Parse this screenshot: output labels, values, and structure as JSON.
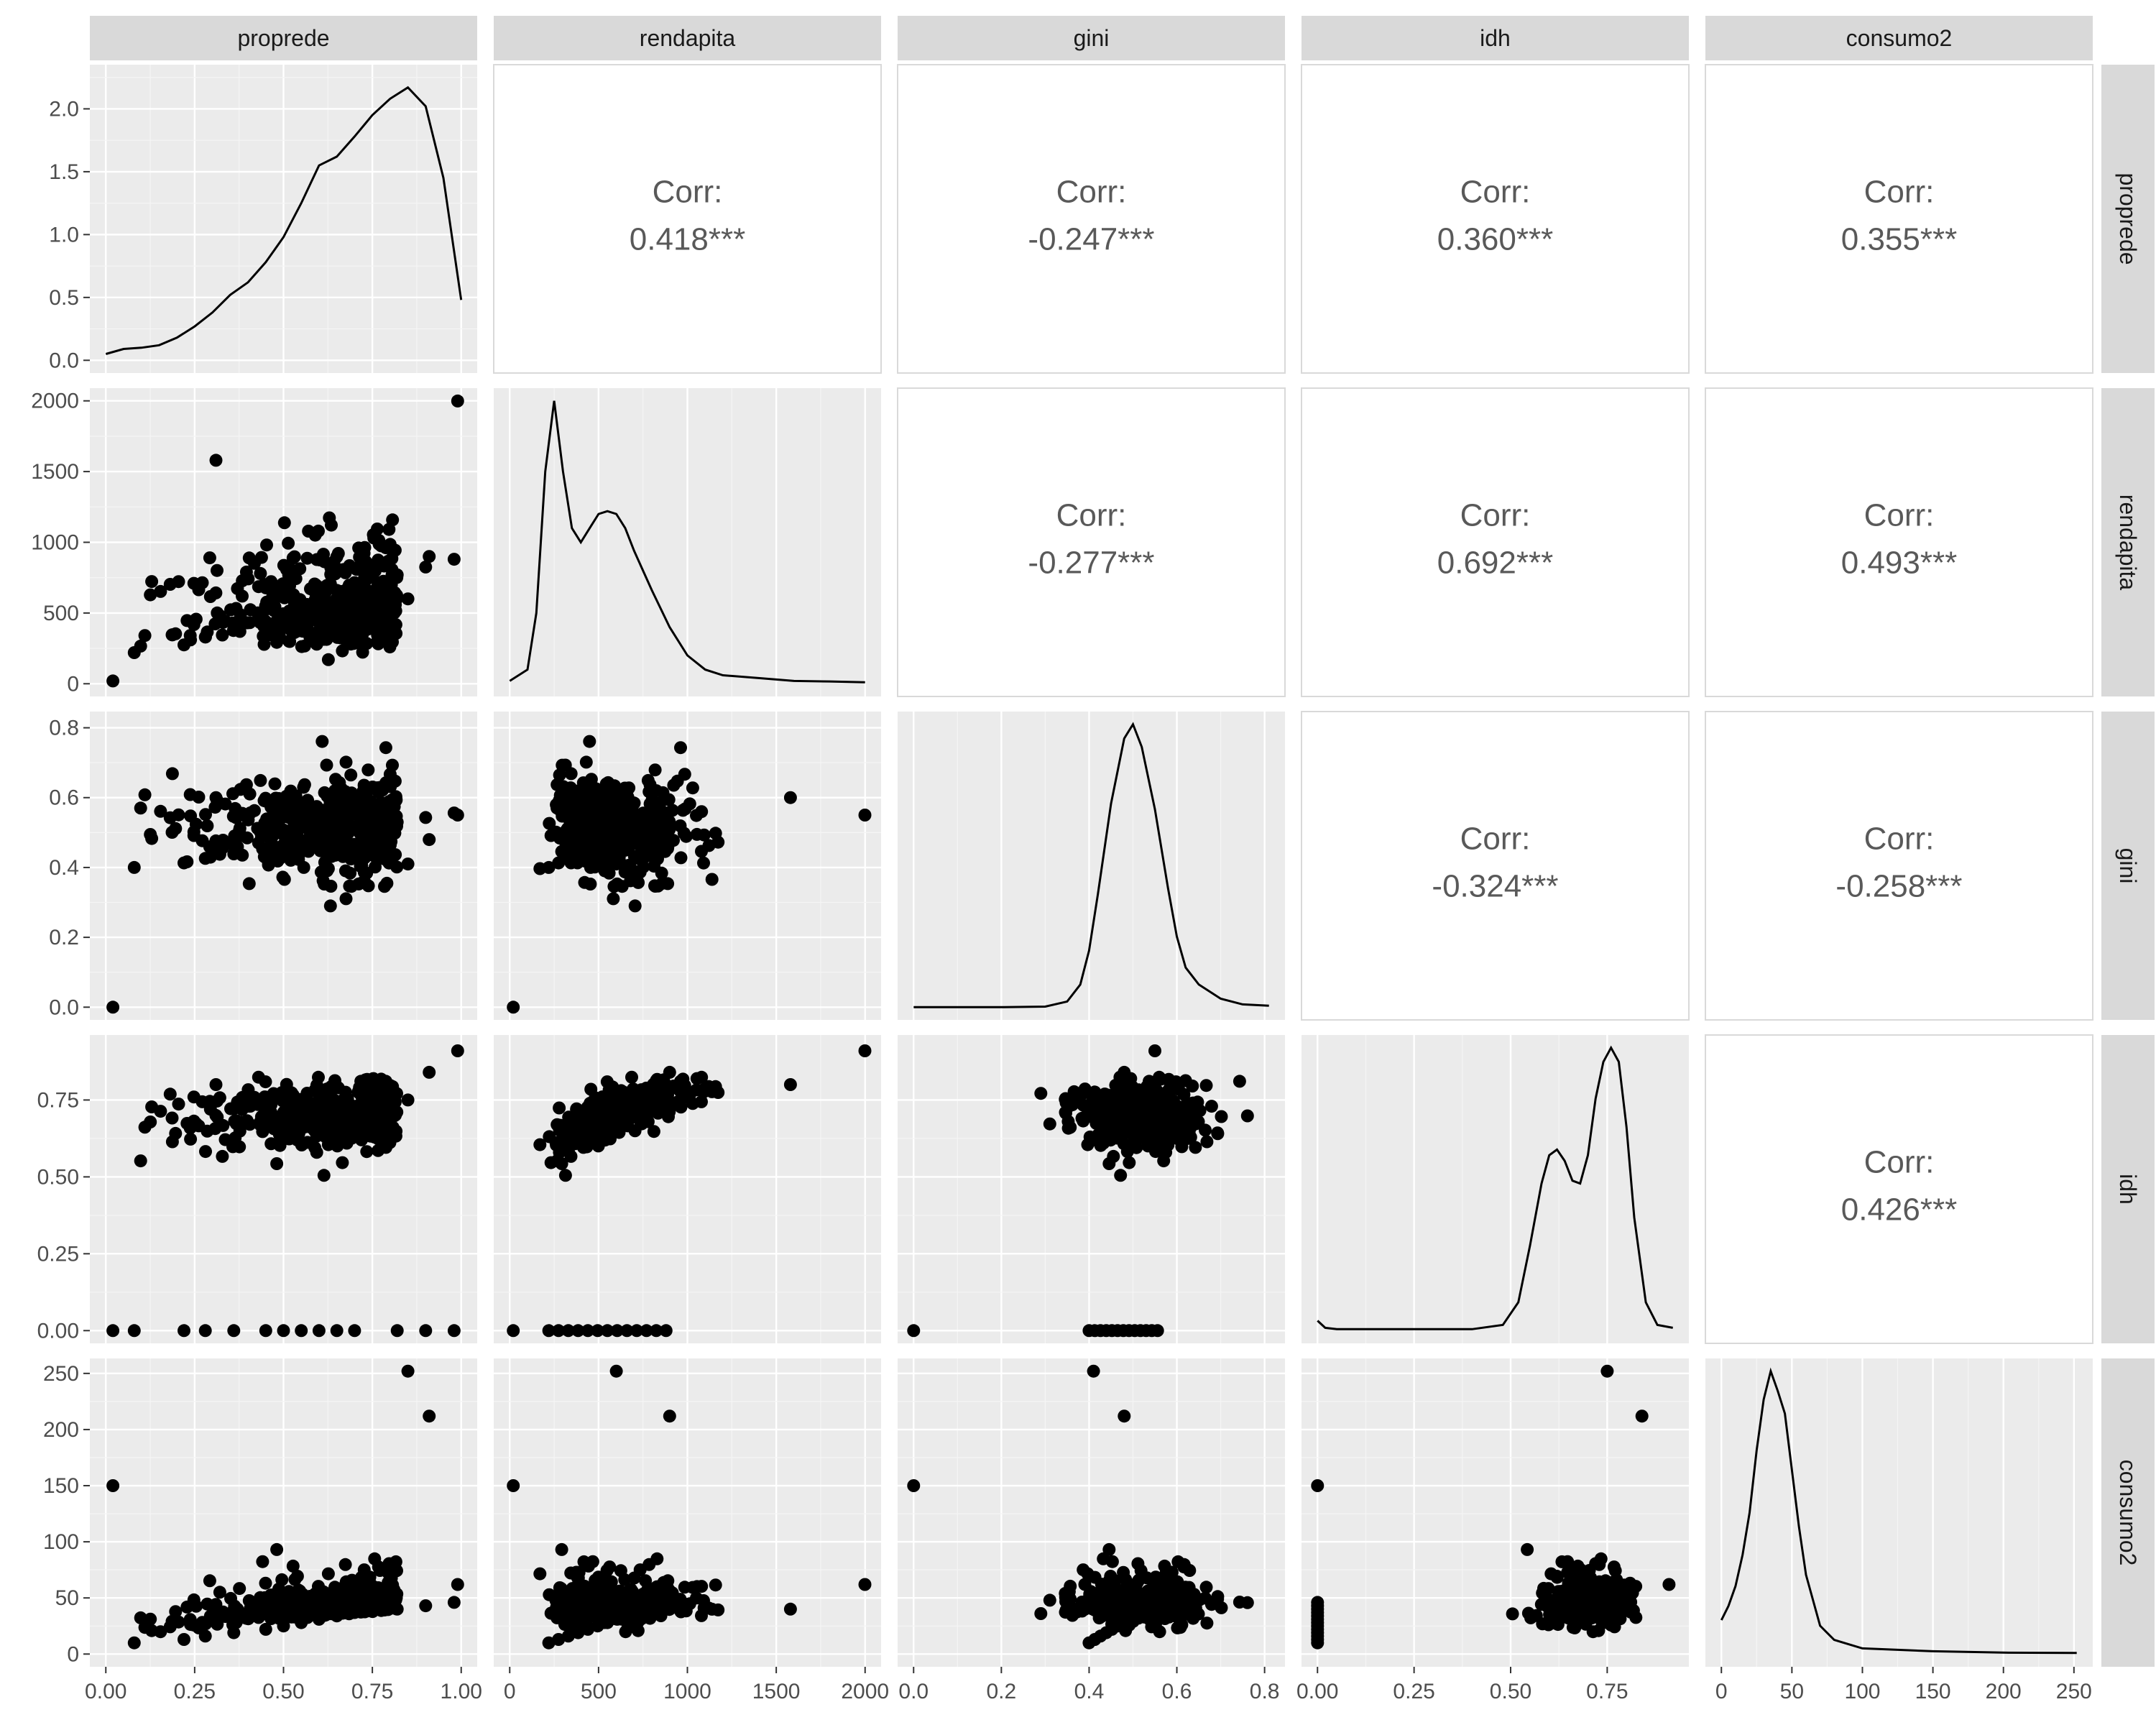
{
  "chart_data": {
    "type": "scatter-matrix",
    "variables": [
      "proprede",
      "rendapita",
      "gini",
      "idh",
      "consumo2"
    ],
    "corr_label": "Corr:",
    "correlations": [
      {
        "row": "proprede",
        "col": "rendapita",
        "value": "0.418***"
      },
      {
        "row": "proprede",
        "col": "gini",
        "value": "-0.247***"
      },
      {
        "row": "proprede",
        "col": "idh",
        "value": "0.360***"
      },
      {
        "row": "proprede",
        "col": "consumo2",
        "value": "0.355***"
      },
      {
        "row": "rendapita",
        "col": "gini",
        "value": "-0.277***"
      },
      {
        "row": "rendapita",
        "col": "idh",
        "value": "0.692***"
      },
      {
        "row": "rendapita",
        "col": "consumo2",
        "value": "0.493***"
      },
      {
        "row": "gini",
        "col": "idh",
        "value": "-0.324***"
      },
      {
        "row": "gini",
        "col": "consumo2",
        "value": "-0.258***"
      },
      {
        "row": "idh",
        "col": "consumo2",
        "value": "0.426***"
      }
    ],
    "axes": {
      "proprede": {
        "range": [
          0,
          1
        ],
        "ticks": [
          0,
          0.25,
          0.5,
          0.75,
          1
        ],
        "tick_labels": [
          "0.00",
          "0.25",
          "0.50",
          "0.75",
          "1.00"
        ]
      },
      "rendapita": {
        "range": [
          0,
          2000
        ],
        "ticks": [
          0,
          500,
          1000,
          1500,
          2000
        ],
        "tick_labels": [
          "0",
          "500",
          "1000",
          "1500",
          "2000"
        ]
      },
      "gini": {
        "range": [
          0,
          0.81
        ],
        "ticks": [
          0,
          0.2,
          0.4,
          0.6,
          0.8
        ],
        "tick_labels": [
          "0.0",
          "0.2",
          "0.4",
          "0.6",
          "0.8"
        ]
      },
      "idh": {
        "range": [
          0,
          0.92
        ],
        "ticks": [
          0,
          0.25,
          0.5,
          0.75
        ],
        "tick_labels": [
          "0.00",
          "0.25",
          "0.50",
          "0.75"
        ]
      },
      "consumo2": {
        "range": [
          0,
          252
        ],
        "ticks": [
          0,
          50,
          100,
          150,
          200,
          250
        ],
        "tick_labels": [
          "0",
          "50",
          "100",
          "150",
          "200",
          "250"
        ]
      }
    },
    "density_axis": {
      "variable": "proprede",
      "range": [
        0,
        2.25
      ],
      "ticks": [
        0,
        0.5,
        1,
        1.5,
        2
      ],
      "tick_labels": [
        "0.0",
        "0.5",
        "1.0",
        "1.5",
        "2.0"
      ]
    },
    "densities": {
      "proprede": {
        "x": [
          0,
          0.05,
          0.1,
          0.15,
          0.2,
          0.25,
          0.3,
          0.35,
          0.4,
          0.45,
          0.5,
          0.55,
          0.6,
          0.65,
          0.7,
          0.75,
          0.8,
          0.85,
          0.9,
          0.95,
          1.0
        ],
        "y": [
          0.05,
          0.09,
          0.1,
          0.12,
          0.18,
          0.27,
          0.38,
          0.52,
          0.62,
          0.78,
          0.98,
          1.25,
          1.55,
          1.62,
          1.78,
          1.95,
          2.08,
          2.17,
          2.02,
          1.45,
          0.48
        ]
      },
      "rendapita": {
        "x": [
          0,
          100,
          150,
          200,
          250,
          300,
          350,
          400,
          450,
          500,
          550,
          600,
          650,
          700,
          800,
          900,
          1000,
          1100,
          1200,
          1400,
          1600,
          1800,
          2000
        ],
        "y": [
          0.01,
          0.05,
          0.25,
          0.75,
          1.0,
          0.75,
          0.55,
          0.5,
          0.55,
          0.6,
          0.61,
          0.6,
          0.55,
          0.47,
          0.33,
          0.2,
          0.1,
          0.05,
          0.03,
          0.02,
          0.01,
          0.008,
          0.005
        ]
      },
      "gini": {
        "x": [
          0,
          0.2,
          0.3,
          0.35,
          0.38,
          0.4,
          0.42,
          0.45,
          0.48,
          0.5,
          0.52,
          0.55,
          0.58,
          0.6,
          0.62,
          0.65,
          0.7,
          0.75,
          0.81
        ],
        "y": [
          0,
          0,
          0.002,
          0.02,
          0.08,
          0.2,
          0.4,
          0.72,
          0.95,
          1.0,
          0.92,
          0.7,
          0.42,
          0.25,
          0.14,
          0.08,
          0.03,
          0.01,
          0.005
        ]
      },
      "idh": {
        "x": [
          0,
          0.02,
          0.05,
          0.1,
          0.4,
          0.48,
          0.52,
          0.55,
          0.58,
          0.6,
          0.62,
          0.64,
          0.66,
          0.68,
          0.7,
          0.72,
          0.74,
          0.76,
          0.78,
          0.8,
          0.82,
          0.85,
          0.88,
          0.92
        ],
        "y": [
          0.035,
          0.01,
          0.005,
          0.005,
          0.005,
          0.02,
          0.1,
          0.3,
          0.52,
          0.62,
          0.64,
          0.6,
          0.53,
          0.52,
          0.62,
          0.82,
          0.95,
          1.0,
          0.95,
          0.72,
          0.4,
          0.1,
          0.02,
          0.01
        ]
      },
      "consumo2": {
        "x": [
          0,
          5,
          10,
          15,
          20,
          25,
          30,
          35,
          40,
          45,
          50,
          55,
          60,
          70,
          80,
          100,
          150,
          200,
          252
        ],
        "y": [
          0.12,
          0.17,
          0.24,
          0.35,
          0.5,
          0.72,
          0.9,
          1.0,
          0.93,
          0.85,
          0.65,
          0.45,
          0.28,
          0.1,
          0.05,
          0.02,
          0.01,
          0.005,
          0.004
        ]
      }
    },
    "scatter_note": "lower-triangle panels are scatter plots of the same observations for each variable pair"
  }
}
